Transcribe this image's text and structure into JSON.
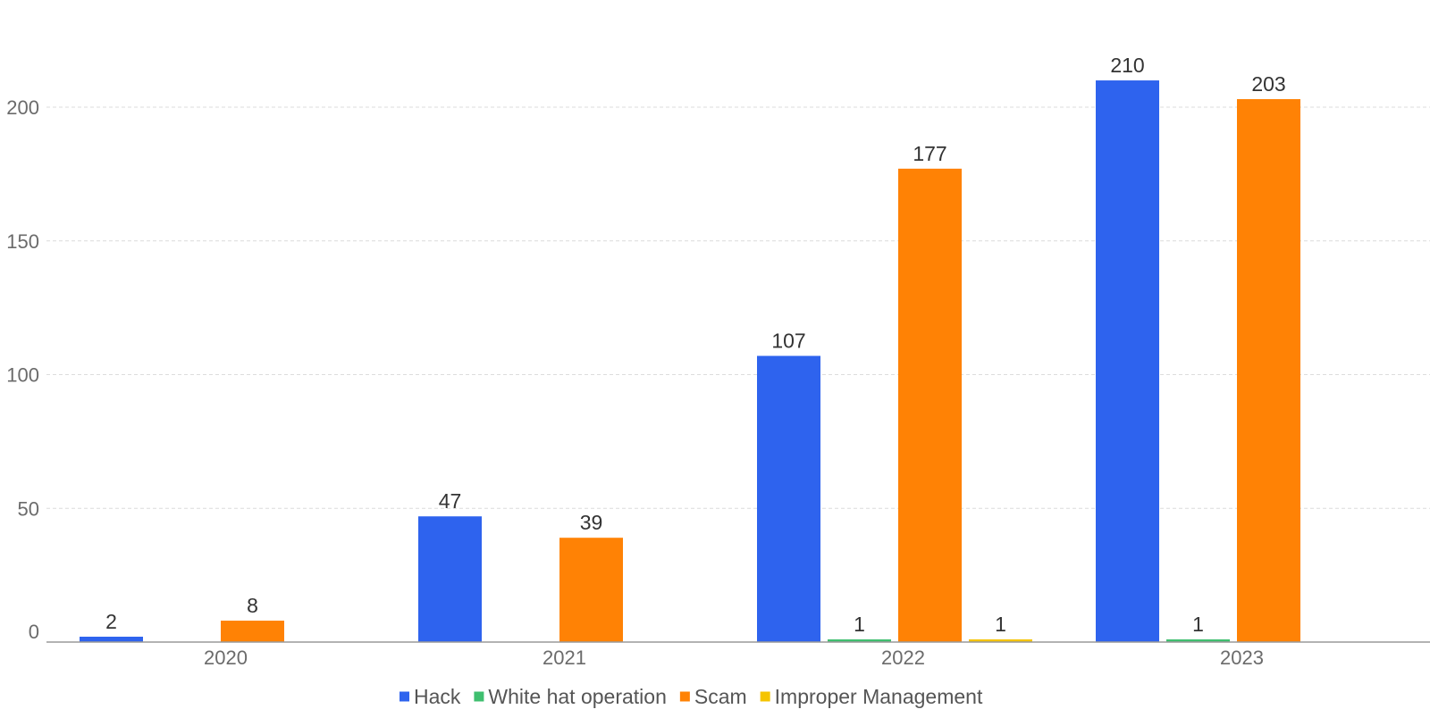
{
  "chart_data": {
    "type": "bar",
    "categories": [
      "2020",
      "2021",
      "2022",
      "2023"
    ],
    "series": [
      {
        "name": "Hack",
        "color": "#2e63ee",
        "values": [
          2,
          47,
          107,
          210
        ]
      },
      {
        "name": "White hat operation",
        "color": "#3fbf6f",
        "values": [
          null,
          null,
          1,
          1
        ]
      },
      {
        "name": "Scam",
        "color": "#ff8205",
        "values": [
          8,
          39,
          177,
          203
        ]
      },
      {
        "name": "Improper Management",
        "color": "#f5c400",
        "values": [
          null,
          null,
          1,
          null
        ]
      }
    ],
    "yticks": [
      0,
      50,
      100,
      150,
      200
    ],
    "ylim": [
      0,
      225
    ],
    "title": "",
    "xlabel": "",
    "ylabel": "",
    "grid": true,
    "legend": "bottom-center"
  }
}
